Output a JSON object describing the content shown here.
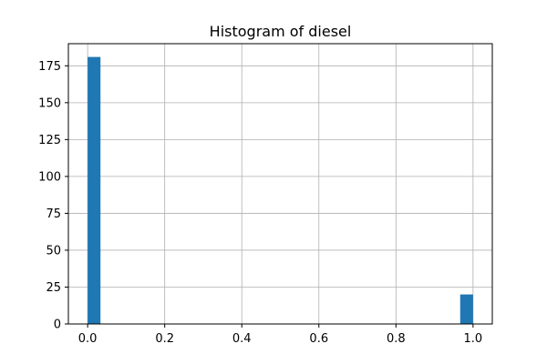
{
  "chart_data": {
    "type": "bar",
    "title": "Histogram of diesel",
    "xlabel": "",
    "ylabel": "",
    "xlim": [
      -0.05,
      1.05
    ],
    "ylim": [
      0,
      190
    ],
    "x_ticks": [
      0.0,
      0.2,
      0.4,
      0.6,
      0.8,
      1.0
    ],
    "x_tick_labels": [
      "0.0",
      "0.2",
      "0.4",
      "0.6",
      "0.8",
      "1.0"
    ],
    "y_ticks": [
      0,
      25,
      50,
      75,
      100,
      125,
      150,
      175
    ],
    "y_tick_labels": [
      "0",
      "25",
      "50",
      "75",
      "100",
      "125",
      "150",
      "175"
    ],
    "grid": true,
    "bar_color": "#1f77b4",
    "bins": [
      {
        "x0": 0.0,
        "x1": 0.0333,
        "count": 181
      },
      {
        "x0": 0.9667,
        "x1": 1.0,
        "count": 20
      }
    ]
  }
}
